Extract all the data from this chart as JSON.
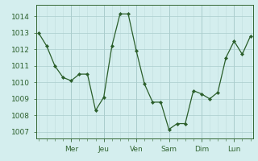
{
  "y_values": [
    1013.0,
    1012.2,
    1011.0,
    1010.3,
    1010.1,
    1010.5,
    1010.5,
    1008.3,
    1009.1,
    1012.2,
    1014.15,
    1014.15,
    1011.9,
    1009.9,
    1008.8,
    1008.8,
    1007.15,
    1007.5,
    1007.5,
    1009.5,
    1009.3,
    1009.0,
    1009.4,
    1011.5,
    1012.5,
    1011.7,
    1012.8
  ],
  "day_labels": [
    "Mer",
    "Jeu",
    "Ven",
    "Sam",
    "Dim",
    "Lun"
  ],
  "day_positions": [
    4,
    8,
    12,
    16,
    20,
    24
  ],
  "yticks": [
    1007,
    1008,
    1009,
    1010,
    1011,
    1012,
    1013,
    1014
  ],
  "ylim": [
    1006.6,
    1014.7
  ],
  "xlim": [
    -0.3,
    26.3
  ],
  "line_color": "#2a5e2a",
  "marker_color": "#2a5e2a",
  "bg_color": "#d4eeee",
  "grid_major_color": "#aacccc",
  "grid_minor_color": "#c0dddd",
  "axis_color": "#336633",
  "tick_label_color": "#2a5e2a",
  "label_fontsize": 6.5,
  "figsize": [
    3.2,
    2.0
  ],
  "dpi": 100
}
